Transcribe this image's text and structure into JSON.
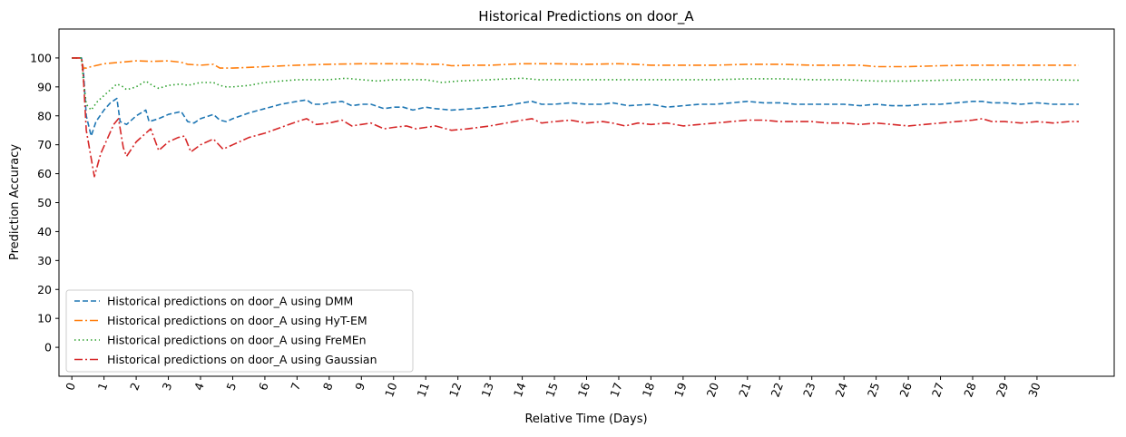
{
  "chart_data": {
    "type": "line",
    "title": "Historical Predictions on door_A",
    "xlabel": "Relative Time (Days)",
    "ylabel": "Prediction Accuracy",
    "xlim": [
      -0.4,
      32.4
    ],
    "ylim": [
      -10,
      110
    ],
    "x_ticks": [
      "0",
      "1",
      "2",
      "3",
      "4",
      "5",
      "6",
      "7",
      "8",
      "9",
      "10",
      "11",
      "12",
      "13",
      "14",
      "15",
      "16",
      "17",
      "18",
      "19",
      "20",
      "21",
      "22",
      "23",
      "24",
      "25",
      "26",
      "27",
      "28",
      "29",
      "30"
    ],
    "y_ticks": [
      "0",
      "10",
      "20",
      "30",
      "40",
      "50",
      "60",
      "70",
      "80",
      "90",
      "100"
    ],
    "legend_position": "lower-left",
    "series": [
      {
        "name": "Historical predictions on door_A using DMM",
        "color": "#1f77b4",
        "dash": "dashed",
        "points": [
          [
            0,
            100
          ],
          [
            0.3,
            100
          ],
          [
            0.35,
            97
          ],
          [
            0.45,
            80
          ],
          [
            0.6,
            73
          ],
          [
            0.75,
            78
          ],
          [
            1.0,
            82
          ],
          [
            1.2,
            84.5
          ],
          [
            1.4,
            86
          ],
          [
            1.5,
            78
          ],
          [
            1.7,
            77
          ],
          [
            2.0,
            80
          ],
          [
            2.3,
            82
          ],
          [
            2.4,
            78
          ],
          [
            2.7,
            79
          ],
          [
            3.0,
            80.5
          ],
          [
            3.4,
            81.5
          ],
          [
            3.6,
            78
          ],
          [
            3.8,
            77.5
          ],
          [
            4.0,
            79
          ],
          [
            4.4,
            80.5
          ],
          [
            4.6,
            78.5
          ],
          [
            4.8,
            78
          ],
          [
            5.0,
            79
          ],
          [
            5.5,
            81
          ],
          [
            6.0,
            82.5
          ],
          [
            6.5,
            84
          ],
          [
            7.0,
            85
          ],
          [
            7.3,
            85.5
          ],
          [
            7.5,
            84
          ],
          [
            7.8,
            84
          ],
          [
            8.0,
            84.5
          ],
          [
            8.4,
            85
          ],
          [
            8.7,
            83.5
          ],
          [
            9.0,
            84
          ],
          [
            9.3,
            84
          ],
          [
            9.7,
            82.5
          ],
          [
            10.0,
            83
          ],
          [
            10.3,
            83
          ],
          [
            10.6,
            82
          ],
          [
            11.0,
            83
          ],
          [
            11.3,
            82.5
          ],
          [
            11.8,
            82
          ],
          [
            12.5,
            82.5
          ],
          [
            13.0,
            83
          ],
          [
            13.5,
            83.5
          ],
          [
            14.0,
            84.5
          ],
          [
            14.3,
            85
          ],
          [
            14.6,
            84
          ],
          [
            15.0,
            84
          ],
          [
            15.5,
            84.5
          ],
          [
            16.0,
            84
          ],
          [
            16.5,
            84
          ],
          [
            16.8,
            84.5
          ],
          [
            17.3,
            83.5
          ],
          [
            18.0,
            84
          ],
          [
            18.5,
            83
          ],
          [
            19.0,
            83.5
          ],
          [
            19.5,
            84
          ],
          [
            20.0,
            84
          ],
          [
            20.5,
            84.5
          ],
          [
            21.0,
            85
          ],
          [
            21.5,
            84.5
          ],
          [
            22.0,
            84.5
          ],
          [
            22.5,
            84
          ],
          [
            23.0,
            84
          ],
          [
            23.5,
            84
          ],
          [
            24.0,
            84
          ],
          [
            24.5,
            83.5
          ],
          [
            25.0,
            84
          ],
          [
            25.5,
            83.5
          ],
          [
            26.0,
            83.5
          ],
          [
            26.5,
            84
          ],
          [
            27.0,
            84
          ],
          [
            27.5,
            84.5
          ],
          [
            28.0,
            85
          ],
          [
            28.3,
            85
          ],
          [
            28.6,
            84.5
          ],
          [
            29.0,
            84.5
          ],
          [
            29.5,
            84
          ],
          [
            30.0,
            84.5
          ],
          [
            30.5,
            84
          ],
          [
            31.0,
            84
          ],
          [
            31.3,
            84
          ]
        ]
      },
      {
        "name": "Historical predictions on door_A using HyT-EM",
        "color": "#ff7f0e",
        "dash": "dashdot",
        "points": [
          [
            0,
            100
          ],
          [
            0.3,
            100
          ],
          [
            0.35,
            96.5
          ],
          [
            0.45,
            96.5
          ],
          [
            0.6,
            97
          ],
          [
            1.0,
            98
          ],
          [
            1.5,
            98.5
          ],
          [
            2.0,
            99
          ],
          [
            2.5,
            98.8
          ],
          [
            3.0,
            99
          ],
          [
            3.4,
            98.5
          ],
          [
            3.6,
            97.8
          ],
          [
            4.0,
            97.5
          ],
          [
            4.4,
            97.8
          ],
          [
            4.6,
            96.5
          ],
          [
            4.8,
            96.5
          ],
          [
            5.0,
            96.5
          ],
          [
            6.0,
            97
          ],
          [
            7.0,
            97.5
          ],
          [
            8.0,
            97.8
          ],
          [
            9.0,
            98
          ],
          [
            10.0,
            98
          ],
          [
            10.6,
            98
          ],
          [
            11.0,
            97.8
          ],
          [
            11.5,
            97.8
          ],
          [
            11.8,
            97.3
          ],
          [
            12.5,
            97.5
          ],
          [
            13.0,
            97.5
          ],
          [
            14.0,
            98
          ],
          [
            15.0,
            98
          ],
          [
            16.0,
            97.8
          ],
          [
            17.0,
            98
          ],
          [
            17.5,
            97.8
          ],
          [
            18.0,
            97.5
          ],
          [
            19.0,
            97.5
          ],
          [
            20.0,
            97.5
          ],
          [
            21.0,
            97.8
          ],
          [
            22.0,
            97.8
          ],
          [
            23.0,
            97.5
          ],
          [
            24.0,
            97.5
          ],
          [
            24.5,
            97.5
          ],
          [
            25.0,
            97
          ],
          [
            25.5,
            97
          ],
          [
            26.0,
            97
          ],
          [
            27.0,
            97.3
          ],
          [
            28.0,
            97.5
          ],
          [
            29.0,
            97.5
          ],
          [
            30.0,
            97.5
          ],
          [
            31.3,
            97.5
          ]
        ]
      },
      {
        "name": "Historical predictions on door_A using FreMEn",
        "color": "#2ca02c",
        "dash": "dotted",
        "points": [
          [
            0,
            100
          ],
          [
            0.3,
            100
          ],
          [
            0.35,
            93
          ],
          [
            0.45,
            84
          ],
          [
            0.6,
            82
          ],
          [
            0.8,
            85
          ],
          [
            1.0,
            87
          ],
          [
            1.4,
            91
          ],
          [
            1.6,
            90
          ],
          [
            1.7,
            89
          ],
          [
            2.0,
            90
          ],
          [
            2.3,
            92
          ],
          [
            2.5,
            90.5
          ],
          [
            2.7,
            89.5
          ],
          [
            3.0,
            90.5
          ],
          [
            3.4,
            91
          ],
          [
            3.6,
            90.5
          ],
          [
            4.0,
            91.5
          ],
          [
            4.4,
            91.5
          ],
          [
            4.6,
            90.5
          ],
          [
            4.8,
            90
          ],
          [
            5.0,
            90
          ],
          [
            5.5,
            90.5
          ],
          [
            6.0,
            91.5
          ],
          [
            6.5,
            92
          ],
          [
            7.0,
            92.5
          ],
          [
            7.5,
            92.5
          ],
          [
            8.0,
            92.5
          ],
          [
            8.5,
            93
          ],
          [
            9.0,
            92.5
          ],
          [
            9.5,
            92
          ],
          [
            10.0,
            92.5
          ],
          [
            11.0,
            92.5
          ],
          [
            11.5,
            91.5
          ],
          [
            12.0,
            92
          ],
          [
            13.0,
            92.5
          ],
          [
            14.0,
            93
          ],
          [
            14.5,
            92.5
          ],
          [
            15.0,
            92.5
          ],
          [
            16.0,
            92.5
          ],
          [
            17.0,
            92.5
          ],
          [
            18.0,
            92.5
          ],
          [
            19.0,
            92.5
          ],
          [
            20.0,
            92.5
          ],
          [
            21.0,
            92.8
          ],
          [
            22.0,
            92.8
          ],
          [
            23.0,
            92.5
          ],
          [
            24.0,
            92.5
          ],
          [
            25.0,
            92
          ],
          [
            26.0,
            92
          ],
          [
            27.0,
            92.3
          ],
          [
            28.0,
            92.5
          ],
          [
            29.0,
            92.5
          ],
          [
            30.0,
            92.5
          ],
          [
            31.3,
            92.3
          ]
        ]
      },
      {
        "name": "Historical predictions on door_A using Gaussian",
        "color": "#d62728",
        "dash": "dashdot",
        "points": [
          [
            0,
            100
          ],
          [
            0.3,
            100
          ],
          [
            0.35,
            95
          ],
          [
            0.45,
            75
          ],
          [
            0.7,
            59
          ],
          [
            0.9,
            67
          ],
          [
            1.1,
            72
          ],
          [
            1.3,
            77
          ],
          [
            1.45,
            79
          ],
          [
            1.6,
            69
          ],
          [
            1.7,
            66
          ],
          [
            2.0,
            71
          ],
          [
            2.3,
            74
          ],
          [
            2.45,
            75.5
          ],
          [
            2.7,
            68
          ],
          [
            3.0,
            71
          ],
          [
            3.3,
            72.5
          ],
          [
            3.5,
            73
          ],
          [
            3.7,
            67.5
          ],
          [
            4.0,
            70
          ],
          [
            4.4,
            72
          ],
          [
            4.7,
            68.5
          ],
          [
            5.0,
            70
          ],
          [
            5.5,
            72.5
          ],
          [
            6.0,
            74
          ],
          [
            6.5,
            76
          ],
          [
            7.0,
            78
          ],
          [
            7.3,
            79
          ],
          [
            7.6,
            77
          ],
          [
            8.0,
            77.5
          ],
          [
            8.4,
            78.5
          ],
          [
            8.7,
            76.5
          ],
          [
            9.0,
            77
          ],
          [
            9.3,
            77.5
          ],
          [
            9.7,
            75.5
          ],
          [
            10.0,
            76
          ],
          [
            10.4,
            76.5
          ],
          [
            10.7,
            75.5
          ],
          [
            11.0,
            76
          ],
          [
            11.3,
            76.5
          ],
          [
            11.8,
            75
          ],
          [
            12.3,
            75.5
          ],
          [
            13.0,
            76.5
          ],
          [
            13.5,
            77.5
          ],
          [
            14.0,
            78.5
          ],
          [
            14.3,
            79
          ],
          [
            14.6,
            77.5
          ],
          [
            15.0,
            78
          ],
          [
            15.5,
            78.5
          ],
          [
            16.0,
            77.5
          ],
          [
            16.5,
            78
          ],
          [
            16.8,
            77.5
          ],
          [
            17.2,
            76.5
          ],
          [
            17.6,
            77.5
          ],
          [
            18.0,
            77
          ],
          [
            18.5,
            77.5
          ],
          [
            19.0,
            76.5
          ],
          [
            19.5,
            77
          ],
          [
            20.0,
            77.5
          ],
          [
            20.5,
            78
          ],
          [
            21.0,
            78.5
          ],
          [
            21.5,
            78.5
          ],
          [
            22.0,
            78
          ],
          [
            22.5,
            78
          ],
          [
            23.0,
            78
          ],
          [
            23.5,
            77.5
          ],
          [
            24.0,
            77.5
          ],
          [
            24.5,
            77
          ],
          [
            25.0,
            77.5
          ],
          [
            25.5,
            77
          ],
          [
            26.0,
            76.5
          ],
          [
            26.5,
            77
          ],
          [
            27.0,
            77.5
          ],
          [
            27.5,
            78
          ],
          [
            28.0,
            78.5
          ],
          [
            28.3,
            79
          ],
          [
            28.6,
            78
          ],
          [
            29.0,
            78
          ],
          [
            29.5,
            77.5
          ],
          [
            30.0,
            78
          ],
          [
            30.5,
            77.5
          ],
          [
            31.0,
            78
          ],
          [
            31.3,
            78
          ]
        ]
      }
    ]
  }
}
